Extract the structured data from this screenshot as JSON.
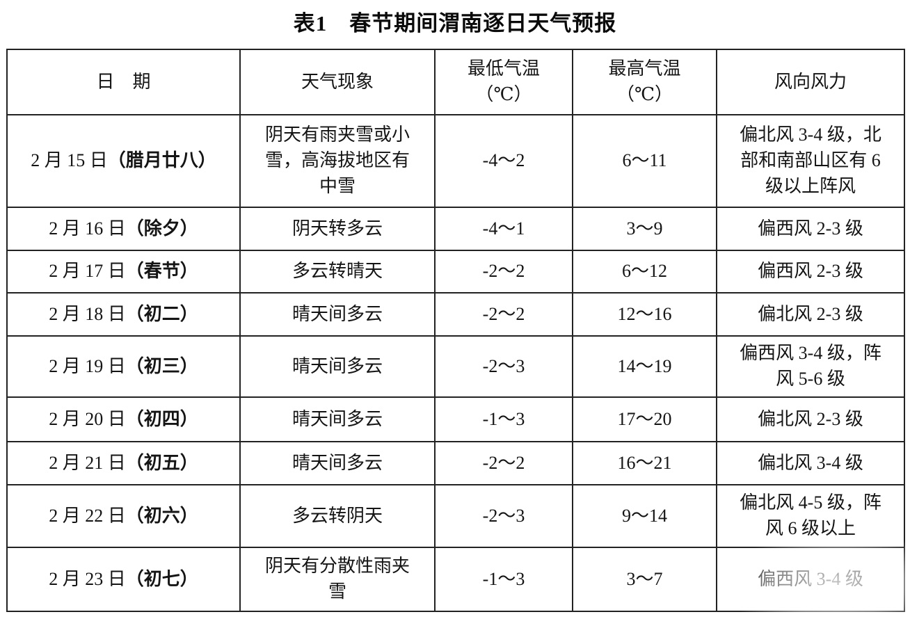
{
  "page": {
    "title": "表1　春节期间渭南逐日天气预报"
  },
  "table": {
    "headers": {
      "date": "日　期",
      "weather": "天气现象",
      "tmin_line1": "最低气温",
      "tmin_line2": "（℃）",
      "tmax_line1": "最高气温",
      "tmax_line2": "（℃）",
      "wind": "风向风力"
    },
    "rows": [
      {
        "date": "2 月 15 日",
        "holiday": "（腊月廿八）",
        "weather": "阴天有雨夹雪或小雪，高海拔地区有中雪",
        "tmin": "-4～2",
        "tmax": "6～11",
        "wind": "偏北风 3-4 级，北部和南部山区有 6 级以上阵风"
      },
      {
        "date": "2 月 16 日",
        "holiday": "（除夕）",
        "weather": "阴天转多云",
        "tmin": "-4～1",
        "tmax": "3～9",
        "wind": "偏西风 2-3 级"
      },
      {
        "date": "2 月 17 日",
        "holiday": "（春节）",
        "weather": "多云转晴天",
        "tmin": "-2～2",
        "tmax": "6～12",
        "wind": "偏西风 2-3 级"
      },
      {
        "date": "2 月 18 日",
        "holiday": "（初二）",
        "weather": "晴天间多云",
        "tmin": "-2～2",
        "tmax": "12～16",
        "wind": "偏北风 2-3 级"
      },
      {
        "date": "2 月 19 日",
        "holiday": "（初三）",
        "weather": "晴天间多云",
        "tmin": "-2～3",
        "tmax": "14～19",
        "wind": "偏西风 3-4 级，阵风 5-6 级"
      },
      {
        "date": "2 月 20 日",
        "holiday": "（初四）",
        "weather": "晴天间多云",
        "tmin": "-1～3",
        "tmax": "17～20",
        "wind": "偏北风 2-3 级"
      },
      {
        "date": "2 月 21 日",
        "holiday": "（初五）",
        "weather": "晴天间多云",
        "tmin": "-2～2",
        "tmax": "16～21",
        "wind": "偏北风 3-4 级"
      },
      {
        "date": "2 月 22 日",
        "holiday": "（初六）",
        "weather": "多云转阴天",
        "tmin": "-2～3",
        "tmax": "9～14",
        "wind": "偏北风 4-5 级，阵风 6 级以上"
      },
      {
        "date": "2 月 23 日",
        "holiday": "（初七）",
        "weather": "阴天有分散性雨夹雪",
        "tmin": "-1～3",
        "tmax": "3～7",
        "wind": "偏西风 3-4 级"
      }
    ]
  }
}
